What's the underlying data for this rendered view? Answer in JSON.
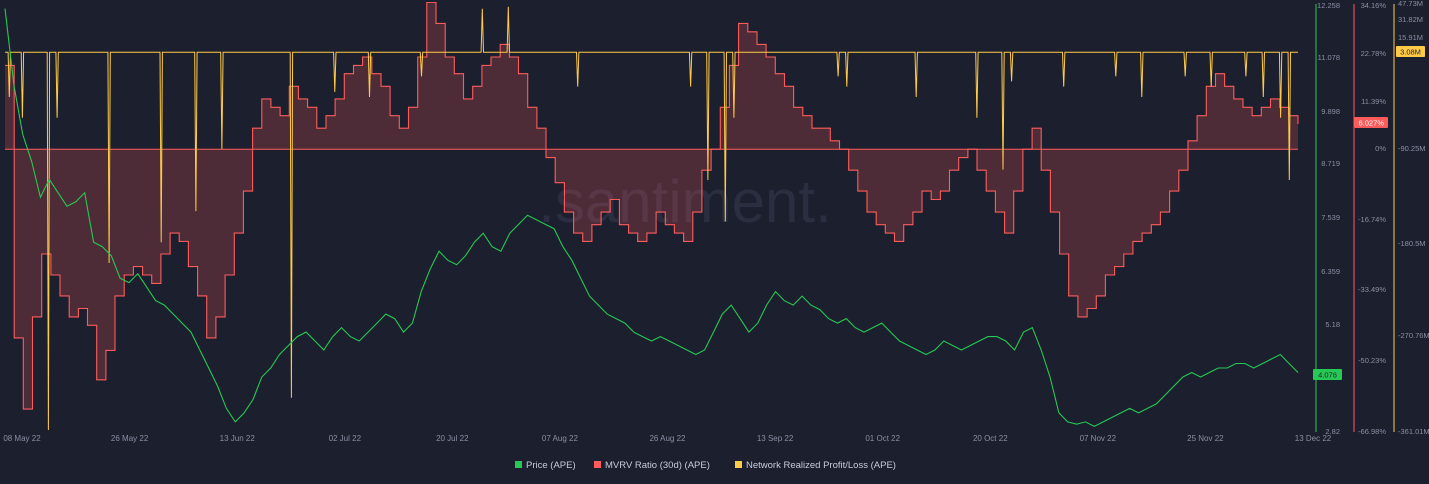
{
  "watermark": ".santiment.",
  "chart_data": {
    "type": "line",
    "x_labels": [
      "08 May 22",
      "26 May 22",
      "13 Jun 22",
      "02 Jul 22",
      "20 Jul 22",
      "07 Aug 22",
      "26 Aug 22",
      "13 Sep 22",
      "01 Oct 22",
      "20 Oct 22",
      "07 Nov 22",
      "25 Nov 22",
      "13 Dec 22"
    ],
    "axes": {
      "price": {
        "ticks": [
          "12.258",
          "11.078",
          "9.898",
          "8.719",
          "7.539",
          "6.359",
          "5.18",
          "",
          "2.82"
        ],
        "range": [
          2.82,
          12.258
        ],
        "color": "#26c953",
        "current_label": "4.076"
      },
      "mvrv": {
        "ticks": [
          "34.16%",
          "22.78%",
          "11.39%",
          "0%",
          "-16.74%",
          "-33.49%",
          "-50.23%",
          "-66.98%"
        ],
        "range": [
          -66.98,
          34.16
        ],
        "color": "#ff5b5b",
        "current_label": "6.027%"
      },
      "nrpl": {
        "ticks": [
          "47.73M",
          "31.82M",
          "15.91M",
          "-90.25M",
          "-180.5M",
          "-270.76M",
          "-361.01M"
        ],
        "range": [
          -361.01,
          47.73
        ],
        "color": "#ffcb47",
        "current_label": "3.08M"
      }
    },
    "series": [
      {
        "name": "Price (APE)",
        "key": "price",
        "color": "#26c953",
        "type": "line",
        "values": [
          12.2,
          10.5,
          9.4,
          8.8,
          8.0,
          8.4,
          8.1,
          7.8,
          7.9,
          8.1,
          7.0,
          6.9,
          6.7,
          6.2,
          6.1,
          6.3,
          6.0,
          5.7,
          5.6,
          5.4,
          5.2,
          5.0,
          4.6,
          4.2,
          3.8,
          3.3,
          3.0,
          3.2,
          3.5,
          4.0,
          4.2,
          4.5,
          4.7,
          4.9,
          5.0,
          4.8,
          4.6,
          4.9,
          5.1,
          4.9,
          4.8,
          5.0,
          5.2,
          5.4,
          5.3,
          5.0,
          5.2,
          5.9,
          6.4,
          6.8,
          6.6,
          6.5,
          6.7,
          7.0,
          7.2,
          6.9,
          6.8,
          7.2,
          7.4,
          7.6,
          7.5,
          7.4,
          7.3,
          6.9,
          6.6,
          6.2,
          5.8,
          5.6,
          5.4,
          5.3,
          5.2,
          5.0,
          4.9,
          4.8,
          4.9,
          4.8,
          4.7,
          4.6,
          4.5,
          4.6,
          5.0,
          5.4,
          5.6,
          5.3,
          5.0,
          5.2,
          5.6,
          5.9,
          5.7,
          5.6,
          5.8,
          5.6,
          5.5,
          5.3,
          5.2,
          5.3,
          5.1,
          5.0,
          5.1,
          5.2,
          5.0,
          4.8,
          4.7,
          4.6,
          4.5,
          4.6,
          4.8,
          4.7,
          4.6,
          4.7,
          4.8,
          4.9,
          4.9,
          4.8,
          4.6,
          5.0,
          5.1,
          4.6,
          4.0,
          3.2,
          3.0,
          2.95,
          3.0,
          2.9,
          3.0,
          3.1,
          3.2,
          3.3,
          3.2,
          3.3,
          3.4,
          3.6,
          3.8,
          4.0,
          4.1,
          4.0,
          4.1,
          4.2,
          4.2,
          4.3,
          4.3,
          4.2,
          4.3,
          4.4,
          4.5,
          4.3,
          4.1
        ]
      },
      {
        "name": "MVRV Ratio (30d) (APE)",
        "key": "mvrv",
        "color": "#ff5b5b",
        "type": "step-area",
        "values": [
          20,
          -45,
          -62,
          -40,
          -25,
          -30,
          -35,
          -40,
          -38,
          -42,
          -55,
          -48,
          -35,
          -30,
          -28,
          -30,
          -32,
          -25,
          -20,
          -22,
          -28,
          -35,
          -45,
          -40,
          -30,
          -20,
          -10,
          5,
          12,
          10,
          8,
          15,
          12,
          10,
          5,
          8,
          12,
          18,
          20,
          22,
          18,
          15,
          8,
          5,
          10,
          22,
          35,
          30,
          22,
          18,
          12,
          15,
          20,
          22,
          25,
          22,
          18,
          10,
          5,
          -2,
          -8,
          -15,
          -20,
          -22,
          -18,
          -15,
          -12,
          -18,
          -20,
          -22,
          -20,
          -15,
          -18,
          -20,
          -22,
          -15,
          -5,
          0,
          10,
          20,
          30,
          28,
          25,
          22,
          18,
          15,
          10,
          8,
          5,
          5,
          2,
          0,
          -5,
          -10,
          -15,
          -18,
          -20,
          -22,
          -18,
          -15,
          -10,
          -12,
          -10,
          -5,
          -2,
          0,
          -5,
          -10,
          -15,
          -20,
          -10,
          0,
          5,
          -5,
          -15,
          -25,
          -35,
          -40,
          -38,
          -35,
          -30,
          -28,
          -25,
          -22,
          -20,
          -18,
          -15,
          -10,
          -5,
          2,
          8,
          15,
          18,
          15,
          12,
          10,
          8,
          10,
          12,
          10,
          8,
          6
        ]
      },
      {
        "name": "Network Realized Profit/Loss (APE)",
        "key": "nrpl",
        "color": "#ffcb47",
        "type": "line",
        "baseline": 3.08,
        "spikes": [
          [
            0.5,
            -40
          ],
          [
            2,
            -60
          ],
          [
            5,
            -361
          ],
          [
            6,
            -60
          ],
          [
            12,
            -200
          ],
          [
            18,
            -180
          ],
          [
            22,
            -150
          ],
          [
            25,
            -90
          ],
          [
            33,
            -330
          ],
          [
            38,
            -35
          ],
          [
            42,
            -40
          ],
          [
            48,
            -20
          ],
          [
            55,
            45
          ],
          [
            58,
            47
          ],
          [
            66,
            -30
          ],
          [
            79,
            -30
          ],
          [
            81,
            -120
          ],
          [
            83,
            -160
          ],
          [
            84,
            -60
          ],
          [
            96,
            -20
          ],
          [
            97,
            -30
          ],
          [
            105,
            -40
          ],
          [
            112,
            -60
          ],
          [
            115,
            -110
          ],
          [
            116,
            -25
          ],
          [
            122,
            -30
          ],
          [
            128,
            -20
          ],
          [
            131,
            -40
          ],
          [
            136,
            -20
          ],
          [
            139,
            -30
          ],
          [
            143,
            -20
          ],
          [
            145,
            -40
          ],
          [
            147,
            -60
          ],
          [
            148,
            -120
          ]
        ]
      }
    ],
    "legend_position": "bottom-center"
  }
}
